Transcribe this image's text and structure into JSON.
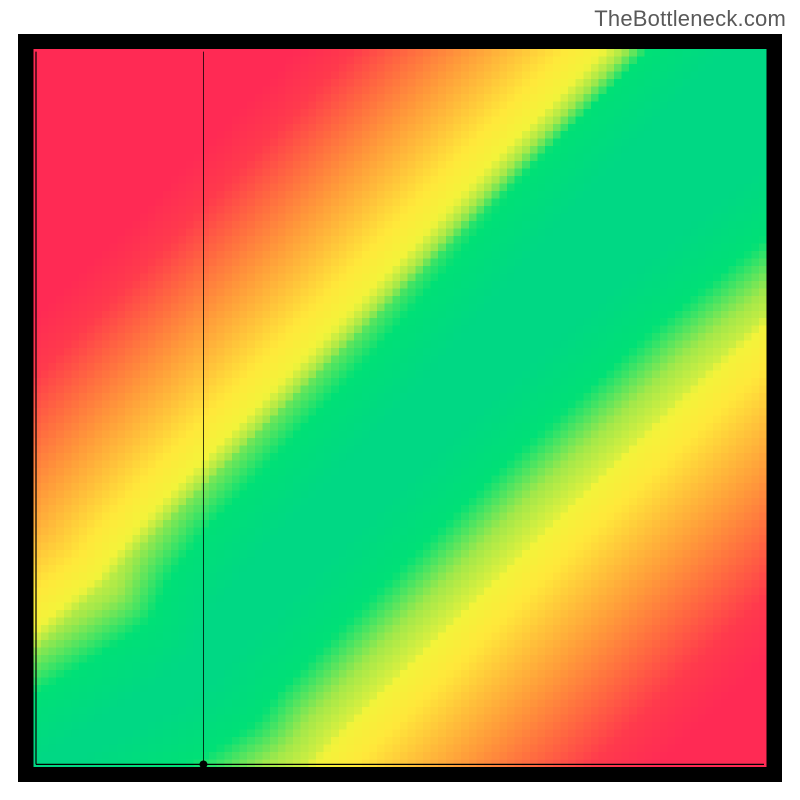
{
  "watermark": "TheBottleneck.com",
  "chart": {
    "type": "heatmap",
    "resolution": 100,
    "aspect_ratio": 1.0,
    "background_color": "#000000",
    "axis": {
      "line_color": "#000000",
      "line_width": 1.2,
      "x_range": [
        0,
        1
      ],
      "y_range": [
        0,
        1
      ],
      "marker": {
        "x_position": 0.23,
        "radius": 4,
        "fill": "#000000"
      },
      "vertical_guide": {
        "x_position": 0.23,
        "color": "#000000",
        "width": 1.0
      }
    },
    "optimal_curve": {
      "comment": "piecewise control points (x,y) in [0,1] describing center of green band",
      "points": [
        [
          0.0,
          0.0
        ],
        [
          0.05,
          0.03
        ],
        [
          0.1,
          0.06
        ],
        [
          0.15,
          0.09
        ],
        [
          0.2,
          0.12
        ],
        [
          0.24,
          0.15
        ],
        [
          0.26,
          0.18
        ],
        [
          0.28,
          0.22
        ],
        [
          0.32,
          0.27
        ],
        [
          0.38,
          0.33
        ],
        [
          0.45,
          0.4
        ],
        [
          0.55,
          0.5
        ],
        [
          0.65,
          0.6
        ],
        [
          0.75,
          0.7
        ],
        [
          0.85,
          0.79
        ],
        [
          0.95,
          0.88
        ],
        [
          1.0,
          0.92
        ]
      ],
      "upper_branch_points": [
        [
          0.26,
          0.18
        ],
        [
          0.34,
          0.27
        ],
        [
          0.45,
          0.39
        ],
        [
          0.55,
          0.5
        ],
        [
          0.65,
          0.61
        ],
        [
          0.75,
          0.72
        ],
        [
          0.85,
          0.82
        ],
        [
          0.95,
          0.92
        ],
        [
          1.0,
          0.96
        ]
      ]
    },
    "band": {
      "green_halfwidth_min": 0.01,
      "green_halfwidth_max": 0.06,
      "yellow_halo_extra": 0.08
    },
    "color_stops": {
      "comment": "score 0 = on curve, 1 = farthest",
      "stops": [
        {
          "t": 0.0,
          "hex": "#00d884"
        },
        {
          "t": 0.08,
          "hex": "#00e076"
        },
        {
          "t": 0.14,
          "hex": "#a3e84a"
        },
        {
          "t": 0.2,
          "hex": "#f3f33a"
        },
        {
          "t": 0.3,
          "hex": "#ffe83a"
        },
        {
          "t": 0.42,
          "hex": "#ffc23a"
        },
        {
          "t": 0.55,
          "hex": "#ff9a3a"
        },
        {
          "t": 0.7,
          "hex": "#ff6a40"
        },
        {
          "t": 0.85,
          "hex": "#ff3a4c"
        },
        {
          "t": 1.0,
          "hex": "#ff2a54"
        }
      ]
    },
    "border": {
      "color": "#000000",
      "width": 18
    }
  }
}
